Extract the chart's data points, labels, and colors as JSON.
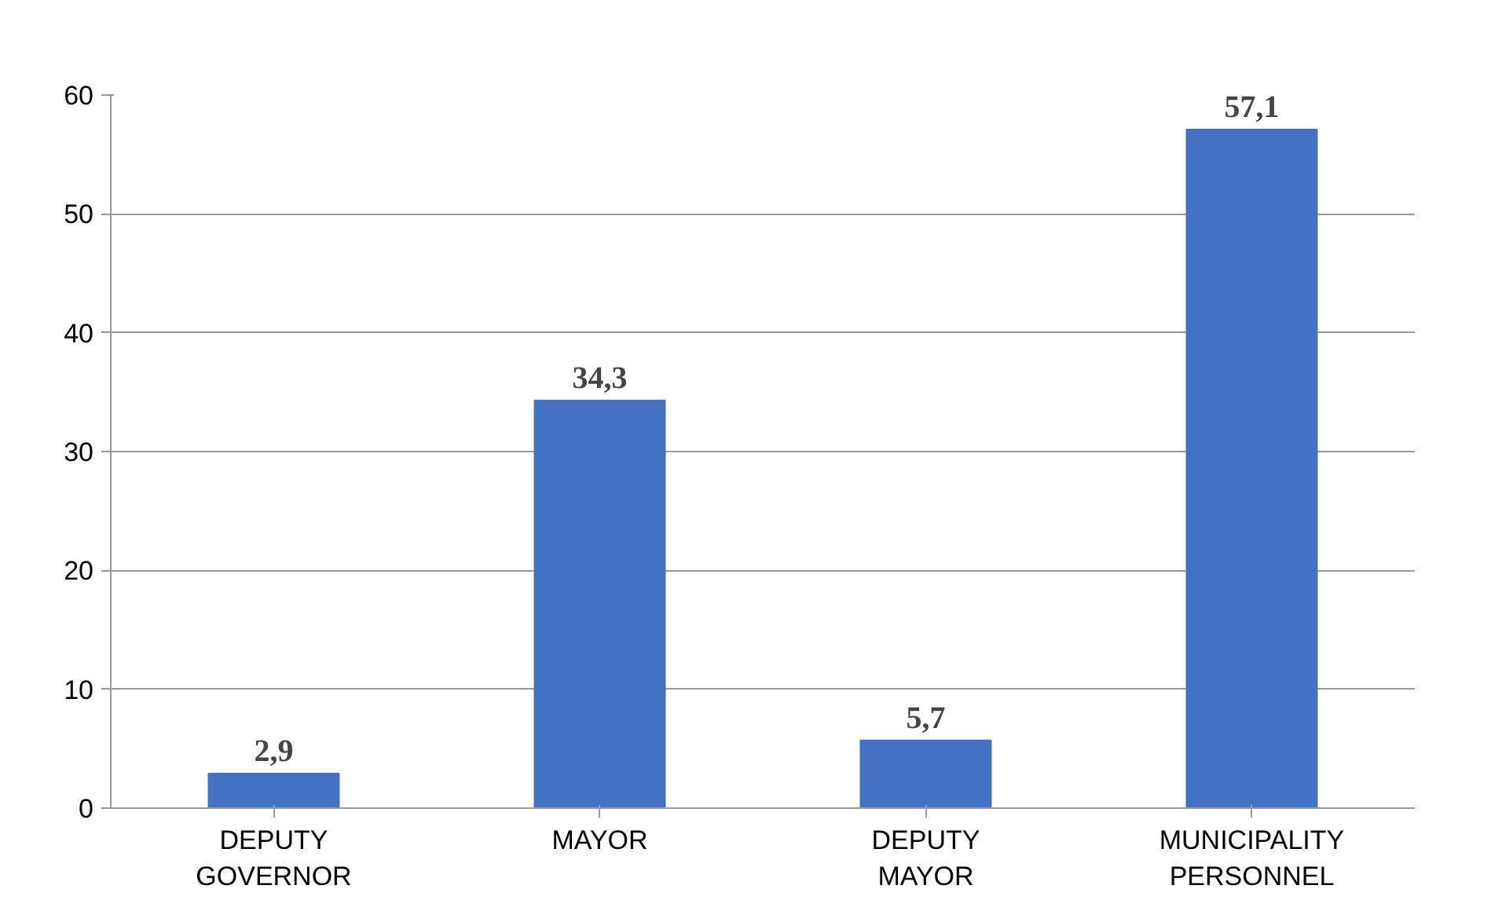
{
  "chart_data": {
    "type": "bar",
    "categories": [
      "DEPUTY GOVERNOR",
      "MAYOR",
      "DEPUTY MAYOR",
      "MUNICIPALITY PERSONNEL"
    ],
    "values": [
      2.9,
      34.3,
      5.7,
      57.1
    ],
    "value_labels": [
      "2,9",
      "34,3",
      "5,7",
      "57,1"
    ],
    "color": "#4472c4",
    "ylim": [
      0,
      60
    ],
    "yticks": [
      0,
      10,
      20,
      30,
      40,
      50,
      60
    ],
    "grid": "y"
  }
}
